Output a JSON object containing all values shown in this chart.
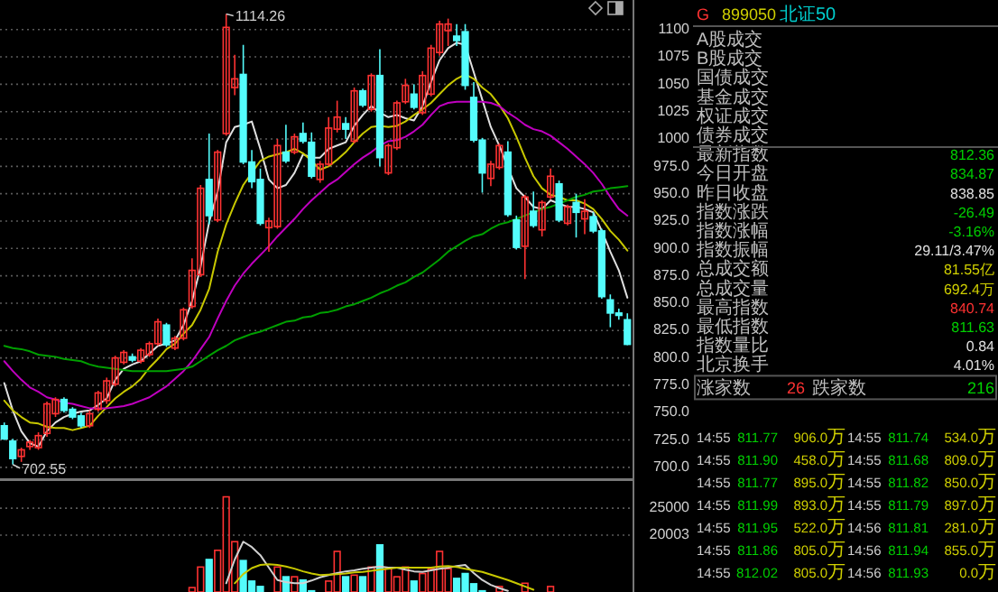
{
  "chart_data": [
    {
      "type": "candlestick",
      "categories": [
        null,
        null,
        null,
        null,
        null,
        null,
        null,
        null,
        null,
        null,
        null,
        null,
        null,
        null,
        null,
        null,
        null,
        null,
        null,
        null,
        null,
        null,
        null,
        null,
        null,
        null,
        null,
        null,
        null,
        null,
        null,
        null,
        null,
        null,
        null,
        null,
        null,
        null,
        null,
        null,
        null,
        null,
        null,
        null,
        null,
        null,
        null,
        null,
        null,
        null,
        null,
        null,
        null,
        null,
        null,
        null,
        null,
        null,
        null,
        null,
        null,
        null,
        null,
        null,
        null,
        null,
        null,
        null,
        null,
        null,
        null,
        null,
        null,
        null
      ],
      "ohlc": [
        [
          738,
          741,
          725,
          726
        ],
        [
          724,
          726,
          702.55,
          708
        ],
        [
          710,
          718,
          705,
          716
        ],
        [
          719,
          725,
          716,
          723
        ],
        [
          718,
          732,
          716,
          729
        ],
        [
          731,
          760,
          728,
          758
        ],
        [
          749,
          764,
          746,
          762
        ],
        [
          762,
          764,
          750,
          752
        ],
        [
          753,
          755,
          744,
          746
        ],
        [
          747,
          750,
          736,
          738
        ],
        [
          738,
          752,
          736,
          749
        ],
        [
          753,
          770,
          751,
          768
        ],
        [
          761,
          782,
          758,
          779
        ],
        [
          776,
          802,
          774,
          800
        ],
        [
          796,
          807,
          794,
          805
        ],
        [
          801,
          804,
          796,
          798
        ],
        [
          797,
          809,
          795,
          807
        ],
        [
          803,
          815,
          801,
          813
        ],
        [
          813,
          836,
          811,
          833
        ],
        [
          830,
          832,
          810,
          812
        ],
        [
          809,
          820,
          807,
          818
        ],
        [
          818,
          846,
          816,
          844
        ],
        [
          847,
          891,
          845,
          880
        ],
        [
          876,
          958,
          874,
          955
        ],
        [
          963,
          1005,
          922,
          930
        ],
        [
          926,
          990,
          924,
          988
        ],
        [
          1005,
          1114.26,
          1003,
          1102
        ],
        [
          1047,
          1077,
          1040,
          1055
        ],
        [
          1059,
          1086,
          977,
          979
        ],
        [
          979,
          990,
          955,
          961
        ],
        [
          963,
          973,
          921,
          923
        ],
        [
          919,
          928,
          897,
          925
        ],
        [
          920,
          1000,
          918,
          994
        ],
        [
          988,
          1013,
          978,
          980
        ],
        [
          988,
          1005,
          986,
          1002
        ],
        [
          1005,
          1015,
          996,
          998
        ],
        [
          997,
          1006,
          964,
          966
        ],
        [
          963,
          980,
          960,
          977
        ],
        [
          977,
          1020,
          975,
          1010
        ],
        [
          1009,
          1035,
          1006,
          1020
        ],
        [
          1014,
          1020,
          1000,
          1009
        ],
        [
          998,
          1047,
          996,
          1044
        ],
        [
          1044,
          1046,
          1029,
          1031
        ],
        [
          1027,
          1060,
          1025,
          1058
        ],
        [
          1058,
          1082,
          975,
          983
        ],
        [
          969,
          996,
          967,
          994
        ],
        [
          992,
          1035,
          990,
          1033
        ],
        [
          1034,
          1055,
          1032,
          1049
        ],
        [
          1041,
          1050,
          1027,
          1029
        ],
        [
          1024,
          1062,
          1022,
          1058
        ],
        [
          1041,
          1086,
          1039,
          1083
        ],
        [
          1079,
          1108,
          1076,
          1105
        ],
        [
          1099,
          1110,
          1085,
          1105
        ],
        [
          1094,
          1105,
          1085,
          1090
        ],
        [
          1098,
          1105,
          1045,
          1049
        ],
        [
          1038,
          1052,
          997,
          999
        ],
        [
          999,
          1001,
          951,
          969
        ],
        [
          964,
          980,
          957,
          977
        ],
        [
          974,
          996,
          972,
          994
        ],
        [
          988,
          998,
          929,
          931
        ],
        [
          926,
          930,
          899,
          901
        ],
        [
          902,
          949,
          872,
          947
        ],
        [
          934,
          952,
          919,
          921
        ],
        [
          917,
          944,
          911,
          942
        ],
        [
          947,
          973,
          945,
          966
        ],
        [
          959,
          962,
          924,
          926
        ],
        [
          923,
          940,
          921,
          938
        ],
        [
          942,
          950,
          910,
          933
        ],
        [
          927,
          945,
          913,
          934
        ],
        [
          929,
          933,
          914,
          916
        ],
        [
          916,
          918,
          854,
          856
        ],
        [
          853,
          858,
          828,
          841
        ],
        [
          841,
          845,
          835,
          838.85
        ],
        [
          834.87,
          840.74,
          811.63,
          812.36
        ]
      ],
      "colors": [
        "#54fcfc",
        "#54fcfc",
        "#ff3232",
        "#ff3232",
        "#ff3232",
        "#ff3232",
        "#ff3232",
        "#54fcfc",
        "#54fcfc",
        "#54fcfc",
        "#ff3232",
        "#ff3232",
        "#ff3232",
        "#ff3232",
        "#ff3232",
        "#54fcfc",
        "#ff3232",
        "#ff3232",
        "#ff3232",
        "#54fcfc",
        "#ff3232",
        "#ff3232",
        "#ff3232",
        "#ff3232",
        "#54fcfc",
        "#ff3232",
        "#ff3232",
        "#ff3232",
        "#54fcfc",
        "#54fcfc",
        "#54fcfc",
        "#ff3232",
        "#ff3232",
        "#54fcfc",
        "#ff3232",
        "#54fcfc",
        "#54fcfc",
        "#ff3232",
        "#ff3232",
        "#ff3232",
        "#54fcfc",
        "#ff3232",
        "#54fcfc",
        "#ff3232",
        "#54fcfc",
        "#ff3232",
        "#ff3232",
        "#ff3232",
        "#54fcfc",
        "#ff3232",
        "#ff3232",
        "#ff3232",
        "#ff3232",
        "#54fcfc",
        "#54fcfc",
        "#54fcfc",
        "#54fcfc",
        "#ff3232",
        "#ff3232",
        "#54fcfc",
        "#54fcfc",
        "#ff3232",
        "#54fcfc",
        "#ff3232",
        "#ff3232",
        "#54fcfc",
        "#ff3232",
        "#54fcfc",
        "#ff3232",
        "#54fcfc",
        "#54fcfc",
        "#54fcfc",
        "#54fcfc",
        "#54fcfc"
      ],
      "series": [
        {
          "type": "line",
          "color": "#e0e0e0",
          "values": [
            777,
            752,
            733,
            722,
            719,
            733,
            741,
            746,
            749,
            751,
            752,
            757,
            763,
            780,
            790,
            794,
            797,
            804,
            811,
            813,
            816,
            830,
            852,
            883,
            924,
            952,
            997,
            1011,
            1013,
            1016,
            991,
            963,
            955,
            958,
            969,
            986,
            983,
            983,
            991,
            994,
            997,
            1012,
            1022,
            1030,
            1024,
            1020,
            1022,
            1019,
            1017,
            1030,
            1052,
            1072,
            1083,
            1088,
            1086,
            1061,
            1036,
            1011,
            994,
            974,
            955,
            947,
            938,
            936,
            944,
            941,
            938,
            938,
            936,
            933,
            916,
            897,
            880,
            855
          ]
        },
        {
          "type": "line",
          "color": "#c8c800",
          "values": [
            761,
            752,
            746,
            741,
            740,
            737,
            736,
            736,
            734,
            736,
            738,
            747,
            755,
            763,
            769,
            774,
            781,
            791,
            799,
            808,
            813,
            822,
            830,
            844,
            863,
            897,
            922,
            941,
            958,
            969,
            980,
            984,
            986,
            988,
            991,
            987,
            980,
            972,
            975,
            981,
            988,
            997,
            1005,
            1011,
            1012,
            1011,
            1012,
            1016,
            1022,
            1027,
            1033,
            1041,
            1049,
            1055,
            1059,
            1055,
            1047,
            1041,
            1031,
            1019,
            1002,
            983,
            966,
            955,
            949,
            947,
            944,
            944,
            941,
            936,
            927,
            916,
            908,
            898
          ]
        },
        {
          "type": "line",
          "color": "#c000c0",
          "values": [
            797,
            788,
            780,
            773,
            769,
            764,
            762,
            759,
            758,
            756,
            754,
            754,
            754,
            755,
            756,
            758,
            761,
            764,
            769,
            774,
            781,
            788,
            797,
            808,
            819,
            836,
            852,
            866,
            877,
            886,
            894,
            902,
            911,
            919,
            927,
            936,
            944,
            951,
            958,
            963,
            970,
            977,
            983,
            988,
            994,
            998,
            999,
            1002,
            1007,
            1013,
            1022,
            1030,
            1033,
            1034,
            1034,
            1034,
            1034,
            1033,
            1030,
            1024,
            1019,
            1013,
            1009,
            1007,
            1003,
            997,
            991,
            984,
            977,
            969,
            959,
            947,
            936,
            930
          ]
        },
        {
          "type": "line",
          "color": "#00a000",
          "values": [
            811,
            809,
            808,
            806,
            803,
            802,
            801,
            799,
            798,
            797,
            794,
            792,
            791,
            790,
            789,
            788,
            788,
            788,
            788,
            788,
            789,
            790,
            792,
            797,
            802,
            807,
            811,
            816,
            819,
            822,
            824,
            827,
            830,
            833,
            834,
            837,
            838,
            841,
            842,
            844,
            847,
            849,
            852,
            855,
            859,
            862,
            866,
            869,
            874,
            878,
            884,
            890,
            897,
            902,
            907,
            911,
            913,
            918,
            922,
            924,
            927,
            930,
            933,
            936,
            938,
            941,
            944,
            947,
            949,
            952,
            953,
            955,
            956,
            957
          ]
        }
      ],
      "ylim": [
        690,
        1127
      ],
      "yticks": [
        {
          "value": 700,
          "label": "700.0"
        },
        {
          "value": 725,
          "label": "725.0"
        },
        {
          "value": 750,
          "label": "750.0"
        },
        {
          "value": 775,
          "label": "775.0"
        },
        {
          "value": 800,
          "label": "800.0"
        },
        {
          "value": 825,
          "label": "825.0"
        },
        {
          "value": 850,
          "label": "850.0"
        },
        {
          "value": 875,
          "label": "875.0"
        },
        {
          "value": 900,
          "label": "900.0"
        },
        {
          "value": 925,
          "label": "925.0"
        },
        {
          "value": 950,
          "label": "950.0"
        },
        {
          "value": 975,
          "label": "975.0"
        },
        1000,
        1025,
        1050,
        1075,
        1100
      ],
      "grid": true,
      "annotations": [
        "1114.26",
        "702.55"
      ]
    },
    {
      "type": "bar",
      "categories": [
        null,
        null,
        null,
        null,
        null,
        null,
        null,
        null,
        null,
        null,
        null,
        null,
        null,
        null,
        null,
        null,
        null,
        null,
        null,
        null,
        null,
        null,
        null,
        null,
        null,
        null,
        null,
        null,
        null,
        null,
        null,
        null,
        null,
        null,
        null,
        null,
        null,
        null,
        null,
        null,
        null,
        null,
        null,
        null,
        null,
        null,
        null,
        null,
        null,
        null,
        null,
        null,
        null,
        null,
        null,
        null,
        null,
        null,
        null,
        null,
        null,
        null,
        null,
        null,
        null,
        null,
        null,
        null,
        null,
        null,
        null,
        null,
        null,
        null
      ],
      "values": [
        null,
        null,
        null,
        null,
        null,
        null,
        null,
        null,
        null,
        null,
        null,
        null,
        null,
        null,
        null,
        null,
        null,
        null,
        null,
        null,
        null,
        null,
        10300,
        14100,
        15500,
        17200,
        27100,
        18800,
        15300,
        11500,
        10500,
        null,
        14100,
        12300,
        12300,
        11700,
        9700,
        null,
        11500,
        17000,
        12300,
        12600,
        12300,
        14100,
        18200,
        13800,
        12300,
        14100,
        11500,
        12900,
        13800,
        17000,
        13800,
        12000,
        12900,
        11000,
        9700,
        null,
        10500,
        null,
        null,
        11100,
        null,
        null,
        10500,
        null,
        null,
        null,
        null,
        null,
        null,
        null,
        null,
        null
      ],
      "colors": [
        null,
        null,
        null,
        null,
        null,
        null,
        null,
        null,
        null,
        null,
        null,
        null,
        null,
        null,
        null,
        null,
        null,
        null,
        null,
        null,
        null,
        null,
        "#ff3232",
        "#ff3232",
        "#54fcfc",
        "#ff3232",
        "#ff3232",
        "#ff3232",
        "#54fcfc",
        "#54fcfc",
        "#54fcfc",
        null,
        "#ff3232",
        "#54fcfc",
        "#ff3232",
        "#54fcfc",
        "#54fcfc",
        null,
        "#ff3232",
        "#ff3232",
        "#54fcfc",
        "#ff3232",
        "#54fcfc",
        "#ff3232",
        "#54fcfc",
        "#ff3232",
        "#ff3232",
        "#ff3232",
        "#54fcfc",
        "#ff3232",
        "#ff3232",
        "#ff3232",
        "#ff3232",
        "#54fcfc",
        "#54fcfc",
        "#54fcfc",
        "#54fcfc",
        null,
        "#ff3232",
        null,
        null,
        "#ff3232",
        null,
        null,
        "#ff3232",
        null,
        null,
        null,
        null,
        null,
        null,
        null,
        null,
        null
      ],
      "series": [
        {
          "type": "line",
          "color": "#d0d0d0",
          "values": [
            null,
            null,
            null,
            null,
            null,
            null,
            null,
            null,
            null,
            null,
            null,
            null,
            null,
            null,
            null,
            null,
            null,
            null,
            null,
            null,
            null,
            null,
            null,
            null,
            null,
            null,
            11100,
            15500,
            18800,
            17800,
            16300,
            14000,
            11700,
            11300,
            11100,
            11100,
            11600,
            12200,
            12600,
            13000,
            13300,
            13500,
            13800,
            14000,
            14200,
            14000,
            14000,
            13600,
            13300,
            13200,
            13500,
            13800,
            14000,
            14300,
            14500,
            13000,
            11700,
            10800,
            10200,
            9700,
            null,
            null,
            null,
            null,
            null,
            null,
            null,
            null,
            null,
            null,
            null,
            null,
            null,
            null
          ]
        },
        {
          "type": "line",
          "color": "#c8c800",
          "values": [
            null,
            null,
            null,
            null,
            null,
            null,
            null,
            null,
            null,
            null,
            null,
            null,
            null,
            null,
            null,
            null,
            null,
            null,
            null,
            null,
            null,
            null,
            null,
            null,
            null,
            null,
            null,
            11100,
            12800,
            13900,
            14500,
            14600,
            14500,
            14200,
            13800,
            13300,
            12900,
            12600,
            12700,
            12800,
            12900,
            13100,
            13200,
            13400,
            13600,
            13800,
            14000,
            14000,
            14000,
            14000,
            14000,
            14200,
            14300,
            14100,
            13800,
            13500,
            13200,
            12700,
            12200,
            11700,
            11100,
            10500,
            9900,
            null,
            null,
            null,
            null,
            null,
            null,
            null,
            null,
            null,
            null,
            null
          ]
        }
      ],
      "ylim": [
        9480,
        30200
      ],
      "yticks": [
        25000,
        20003
      ],
      "grid": true
    },
    {
      "type": "other",
      "title": "北证50",
      "subtitle": "899050",
      "annotations": [
        "G",
        "涨家数",
        "26",
        "跌家数",
        "216"
      ],
      "categories": [
        "A股成交",
        "B股成交",
        "国债成交",
        "基金成交",
        "权证成交",
        "债券成交",
        "最新指数",
        "今日开盘",
        "昨日收盘",
        "指数涨跌",
        "指数涨幅",
        "指数振幅",
        "总成交额",
        "总成交量",
        "最高指数",
        "最低指数",
        "指数量比",
        "北京换手"
      ],
      "value_labels": [
        null,
        null,
        null,
        null,
        null,
        null,
        "812.36",
        "834.87",
        "838.85",
        "-26.49",
        "-3.16%",
        "29.11/3.47%",
        "81.55亿",
        "692.4万",
        "840.74",
        "811.63",
        "0.84",
        "4.01%"
      ],
      "colors": [
        null,
        null,
        null,
        null,
        null,
        null,
        "#00d000",
        "#00d000",
        "#e0e0e0",
        "#00d000",
        "#00d000",
        "#e0e0e0",
        "#d0d000",
        "#d0d000",
        "#ff3232",
        "#00d000",
        "#e0e0e0",
        "#e0e0e0"
      ]
    },
    {
      "type": "other",
      "annotations": [
        "14:55",
        "811.77",
        "906.0万",
        "14:55",
        "811.90",
        "458.0万",
        "14:55",
        "811.77",
        "895.0万",
        "14:55",
        "811.99",
        "893.0万",
        "14:55",
        "811.95",
        "522.0万",
        "14:55",
        "811.86",
        "805.0万",
        "14:55",
        "812.02",
        "805.0万",
        "14:55",
        "811.74",
        "534.0万",
        "14:55",
        "811.68",
        "809.0万",
        "14:55",
        "811.82",
        "850.0万",
        "14:55",
        "811.79",
        "897.0万",
        "14:56",
        "811.81",
        "281.0万",
        "14:56",
        "811.94",
        "855.0万",
        "14:56",
        "811.93",
        "0.0万"
      ]
    }
  ]
}
